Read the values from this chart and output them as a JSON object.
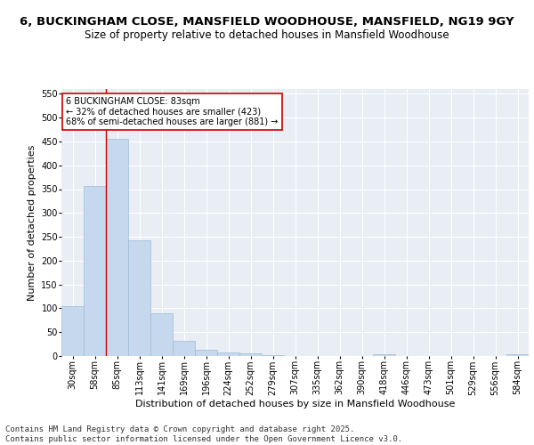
{
  "title": "6, BUCKINGHAM CLOSE, MANSFIELD WOODHOUSE, MANSFIELD, NG19 9GY",
  "subtitle": "Size of property relative to detached houses in Mansfield Woodhouse",
  "xlabel": "Distribution of detached houses by size in Mansfield Woodhouse",
  "ylabel": "Number of detached properties",
  "categories": [
    "30sqm",
    "58sqm",
    "85sqm",
    "113sqm",
    "141sqm",
    "169sqm",
    "196sqm",
    "224sqm",
    "252sqm",
    "279sqm",
    "307sqm",
    "335sqm",
    "362sqm",
    "390sqm",
    "418sqm",
    "446sqm",
    "473sqm",
    "501sqm",
    "529sqm",
    "556sqm",
    "584sqm"
  ],
  "values": [
    105,
    357,
    455,
    243,
    90,
    31,
    13,
    8,
    5,
    2,
    0,
    0,
    0,
    0,
    3,
    0,
    0,
    0,
    0,
    0,
    3
  ],
  "bar_color": "#c5d8ed",
  "bar_edge_color": "#a0bcd8",
  "vline_color": "#cc0000",
  "vline_x_index": 2,
  "annotation_text": "6 BUCKINGHAM CLOSE: 83sqm\n← 32% of detached houses are smaller (423)\n68% of semi-detached houses are larger (881) →",
  "annotation_box_color": "#ffffff",
  "annotation_box_edge_color": "#cc0000",
  "ylim": [
    0,
    560
  ],
  "yticks": [
    0,
    50,
    100,
    150,
    200,
    250,
    300,
    350,
    400,
    450,
    500,
    550
  ],
  "background_color": "#e8eef4",
  "grid_color": "#ffffff",
  "title_fontsize": 9.5,
  "subtitle_fontsize": 8.5,
  "axis_label_fontsize": 8,
  "tick_fontsize": 7,
  "annotation_fontsize": 7,
  "footer_text": "Contains HM Land Registry data © Crown copyright and database right 2025.\nContains public sector information licensed under the Open Government Licence v3.0.",
  "footer_fontsize": 6.5
}
